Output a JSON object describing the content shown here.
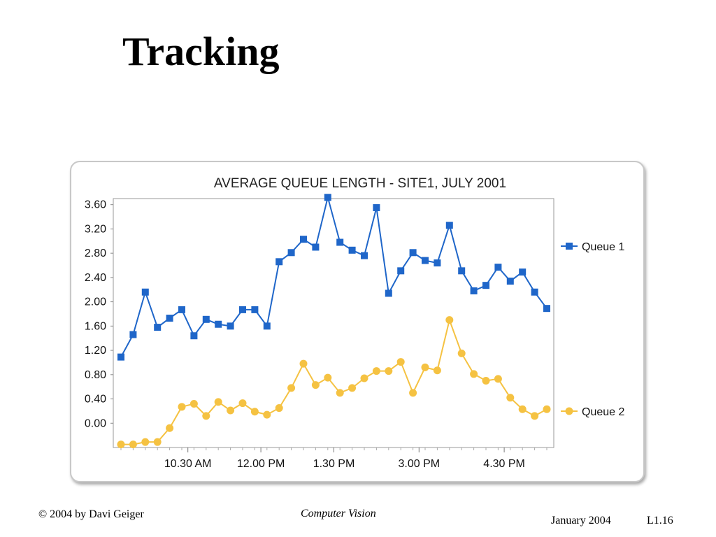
{
  "slide": {
    "title": "Tracking",
    "footer_left": "© 2004 by Davi Geiger",
    "footer_center": "Computer Vision",
    "footer_date": "January 2004",
    "footer_number": "L1.16"
  },
  "chart_data": {
    "type": "line",
    "title": "AVERAGE QUEUE LENGTH - SITE1, JULY 2001",
    "xlabel": "",
    "ylabel": "",
    "ylim": [
      -0.4,
      3.7
    ],
    "yticks": [
      "3.60",
      "3.20",
      "2.80",
      "2.40",
      "2.00",
      "1.60",
      "1.20",
      "0.80",
      "0.40",
      "0.00"
    ],
    "ytick_values": [
      3.6,
      3.2,
      2.8,
      2.4,
      2.0,
      1.6,
      1.2,
      0.8,
      0.4,
      0.0
    ],
    "xticks": [
      {
        "label": "10.30 AM",
        "index": 5.5
      },
      {
        "label": "12.00 PM",
        "index": 11.5
      },
      {
        "label": "1.30 PM",
        "index": 17.5
      },
      {
        "label": "3.00 PM",
        "index": 24.5
      },
      {
        "label": "4.30 PM",
        "index": 31.5
      }
    ],
    "legend_position": "right",
    "grid": false,
    "series": [
      {
        "name": "Queue 1",
        "color": "#1f66c9",
        "marker": "square",
        "values": [
          1.09,
          1.46,
          2.16,
          1.58,
          1.73,
          1.87,
          1.44,
          1.71,
          1.63,
          1.6,
          1.87,
          1.87,
          1.6,
          2.66,
          2.81,
          3.03,
          2.9,
          3.72,
          2.98,
          2.85,
          2.76,
          3.55,
          2.14,
          2.51,
          2.81,
          2.68,
          2.64,
          3.26,
          2.51,
          2.18,
          2.27,
          2.57,
          2.34,
          2.49,
          2.16,
          1.89
        ]
      },
      {
        "name": "Queue 2",
        "color": "#f5c242",
        "marker": "circle",
        "values": [
          -0.35,
          -0.35,
          -0.31,
          -0.31,
          -0.08,
          0.27,
          0.32,
          0.12,
          0.35,
          0.21,
          0.33,
          0.19,
          0.14,
          0.25,
          0.58,
          0.98,
          0.63,
          0.75,
          0.5,
          0.58,
          0.74,
          0.86,
          0.86,
          1.01,
          0.5,
          0.92,
          0.87,
          1.7,
          1.15,
          0.81,
          0.7,
          0.73,
          0.42,
          0.23,
          0.12,
          0.23
        ]
      }
    ]
  }
}
